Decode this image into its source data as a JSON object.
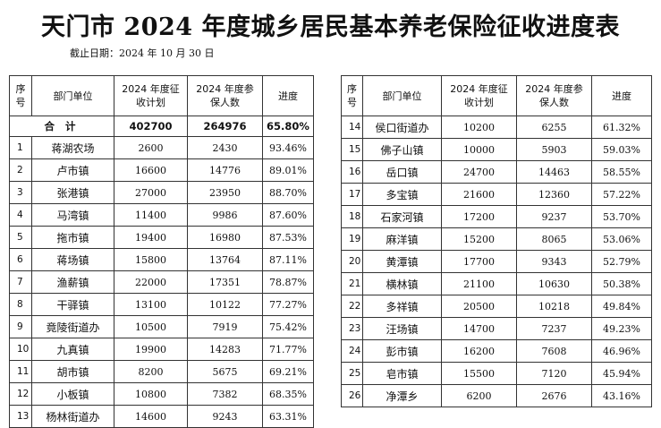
{
  "title": "天门市 2024 年度城乡居民基本养老保险征收进度表",
  "date_label": "截止日期：2024 年 10 月 30 日",
  "headers": {
    "seq": "序号",
    "unit": "部门单位",
    "plan": "2024 年度征收计划",
    "enrolled": "2024 年度参保人数",
    "progress": "进度"
  },
  "total": {
    "label": "合 计",
    "plan": "402700",
    "enrolled": "264976",
    "progress": "65.80%"
  },
  "left_rows": [
    {
      "seq": "1",
      "unit": "蒋湖农场",
      "plan": "2600",
      "enrolled": "2430",
      "progress": "93.46%"
    },
    {
      "seq": "2",
      "unit": "卢市镇",
      "plan": "16600",
      "enrolled": "14776",
      "progress": "89.01%"
    },
    {
      "seq": "3",
      "unit": "张港镇",
      "plan": "27000",
      "enrolled": "23950",
      "progress": "88.70%"
    },
    {
      "seq": "4",
      "unit": "马湾镇",
      "plan": "11400",
      "enrolled": "9986",
      "progress": "87.60%"
    },
    {
      "seq": "5",
      "unit": "拖市镇",
      "plan": "19400",
      "enrolled": "16980",
      "progress": "87.53%"
    },
    {
      "seq": "6",
      "unit": "蒋场镇",
      "plan": "15800",
      "enrolled": "13764",
      "progress": "87.11%"
    },
    {
      "seq": "7",
      "unit": "渔薪镇",
      "plan": "22000",
      "enrolled": "17351",
      "progress": "78.87%"
    },
    {
      "seq": "8",
      "unit": "干驿镇",
      "plan": "13100",
      "enrolled": "10122",
      "progress": "77.27%"
    },
    {
      "seq": "9",
      "unit": "竟陵街道办",
      "plan": "10500",
      "enrolled": "7919",
      "progress": "75.42%"
    },
    {
      "seq": "10",
      "unit": "九真镇",
      "plan": "19900",
      "enrolled": "14283",
      "progress": "71.77%"
    },
    {
      "seq": "11",
      "unit": "胡市镇",
      "plan": "8200",
      "enrolled": "5675",
      "progress": "69.21%"
    },
    {
      "seq": "12",
      "unit": "小板镇",
      "plan": "10800",
      "enrolled": "7382",
      "progress": "68.35%"
    },
    {
      "seq": "13",
      "unit": "杨林街道办",
      "plan": "14600",
      "enrolled": "9243",
      "progress": "63.31%"
    }
  ],
  "right_rows": [
    {
      "seq": "14",
      "unit": "侯口街道办",
      "plan": "10200",
      "enrolled": "6255",
      "progress": "61.32%"
    },
    {
      "seq": "15",
      "unit": "佛子山镇",
      "plan": "10000",
      "enrolled": "5903",
      "progress": "59.03%"
    },
    {
      "seq": "16",
      "unit": "岳口镇",
      "plan": "24700",
      "enrolled": "14463",
      "progress": "58.55%"
    },
    {
      "seq": "17",
      "unit": "多宝镇",
      "plan": "21600",
      "enrolled": "12360",
      "progress": "57.22%"
    },
    {
      "seq": "18",
      "unit": "石家河镇",
      "plan": "17200",
      "enrolled": "9237",
      "progress": "53.70%"
    },
    {
      "seq": "19",
      "unit": "麻洋镇",
      "plan": "15200",
      "enrolled": "8065",
      "progress": "53.06%"
    },
    {
      "seq": "20",
      "unit": "黄潭镇",
      "plan": "17700",
      "enrolled": "9343",
      "progress": "52.79%"
    },
    {
      "seq": "21",
      "unit": "横林镇",
      "plan": "21100",
      "enrolled": "10630",
      "progress": "50.38%"
    },
    {
      "seq": "22",
      "unit": "多祥镇",
      "plan": "20500",
      "enrolled": "10218",
      "progress": "49.84%"
    },
    {
      "seq": "23",
      "unit": "汪场镇",
      "plan": "14700",
      "enrolled": "7237",
      "progress": "49.23%"
    },
    {
      "seq": "24",
      "unit": "彭市镇",
      "plan": "16200",
      "enrolled": "7608",
      "progress": "46.96%"
    },
    {
      "seq": "25",
      "unit": "皂市镇",
      "plan": "15500",
      "enrolled": "7120",
      "progress": "45.94%"
    },
    {
      "seq": "26",
      "unit": "净潭乡",
      "plan": "6200",
      "enrolled": "2676",
      "progress": "43.16%"
    }
  ]
}
